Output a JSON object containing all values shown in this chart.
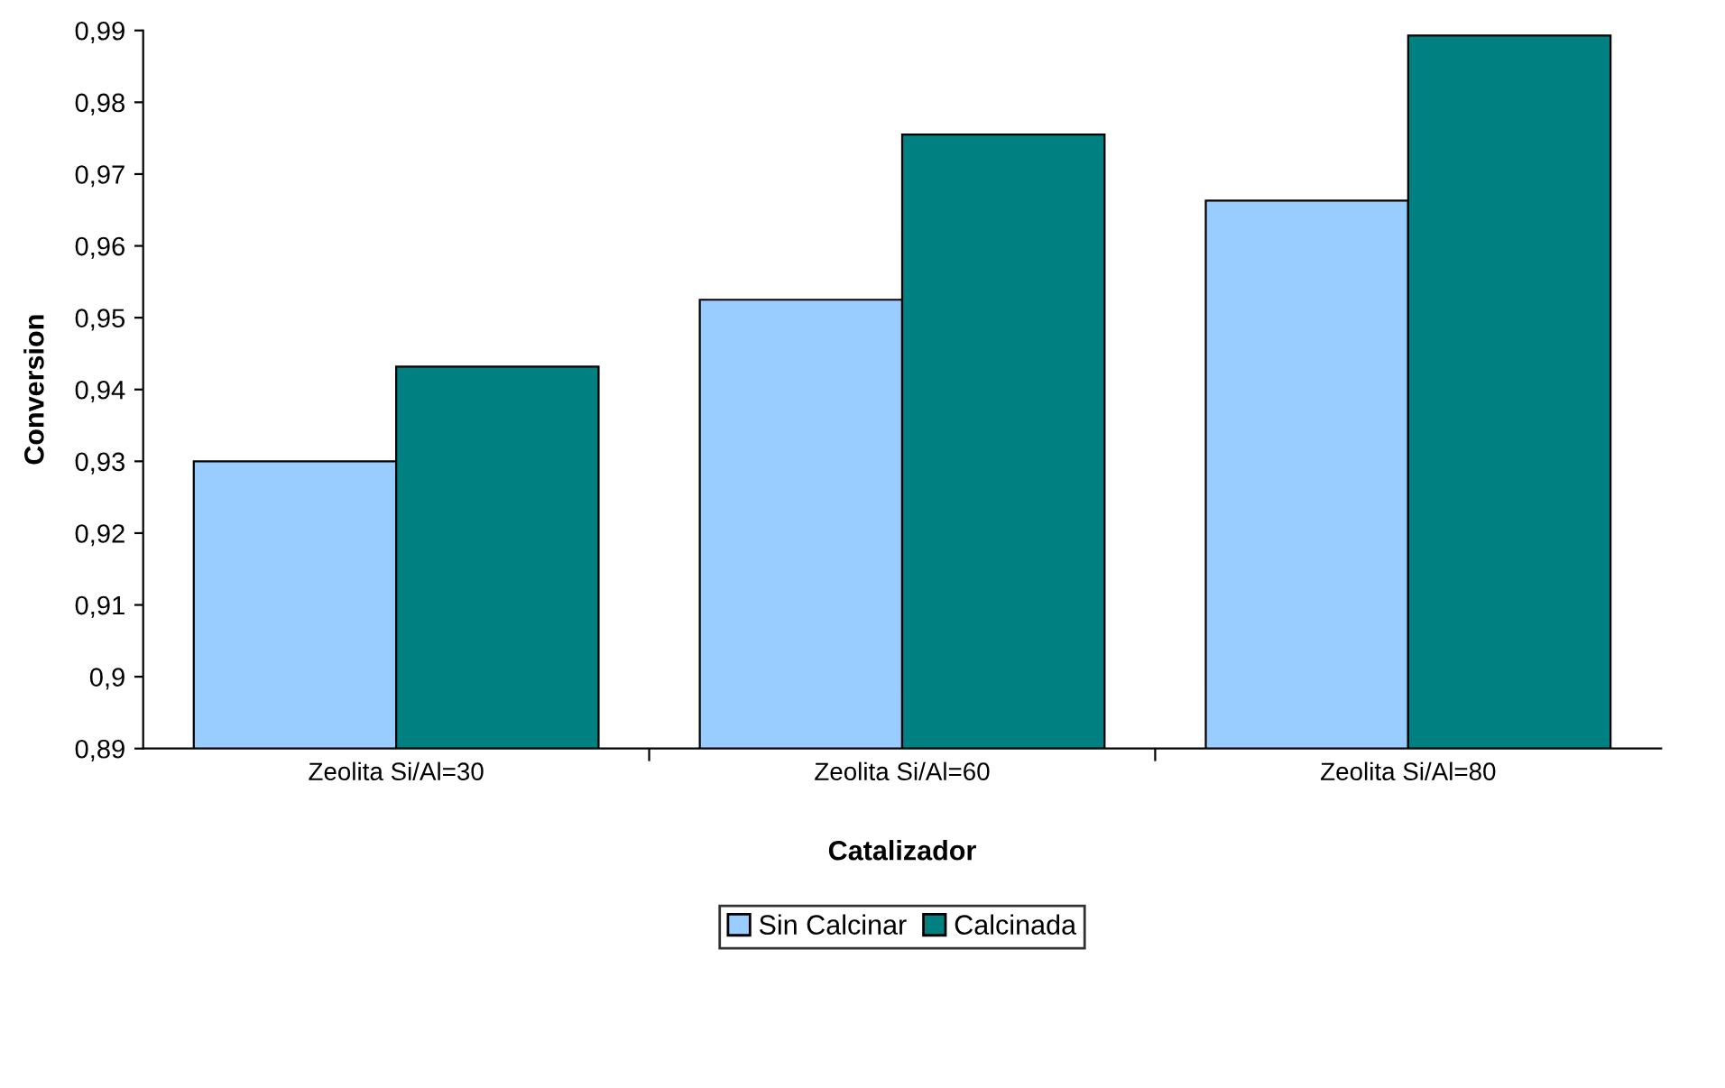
{
  "chart_data": {
    "type": "bar",
    "xlabel": "Catalizador",
    "ylabel": "Conversion",
    "categories": [
      "Zeolita Si/Al=30",
      "Zeolita Si/Al=60",
      "Zeolita Si/Al=80"
    ],
    "series": [
      {
        "name": "Sin Calcinar",
        "color": "#99ccff",
        "values": [
          0.93,
          0.9525,
          0.9663
        ]
      },
      {
        "name": "Calcinada",
        "color": "#008080",
        "values": [
          0.9432,
          0.9755,
          0.9893
        ]
      }
    ],
    "ylim": [
      0.89,
      0.99
    ],
    "yticks": [
      {
        "value": 0.89,
        "label": "0,89"
      },
      {
        "value": 0.9,
        "label": "0,9"
      },
      {
        "value": 0.91,
        "label": "0,91"
      },
      {
        "value": 0.92,
        "label": "0,92"
      },
      {
        "value": 0.93,
        "label": "0,93"
      },
      {
        "value": 0.94,
        "label": "0,94"
      },
      {
        "value": 0.95,
        "label": "0,95"
      },
      {
        "value": 0.96,
        "label": "0,96"
      },
      {
        "value": 0.97,
        "label": "0,97"
      },
      {
        "value": 0.98,
        "label": "0,98"
      },
      {
        "value": 0.99,
        "label": "0,99"
      }
    ],
    "grid": false,
    "legend": "bottom"
  }
}
